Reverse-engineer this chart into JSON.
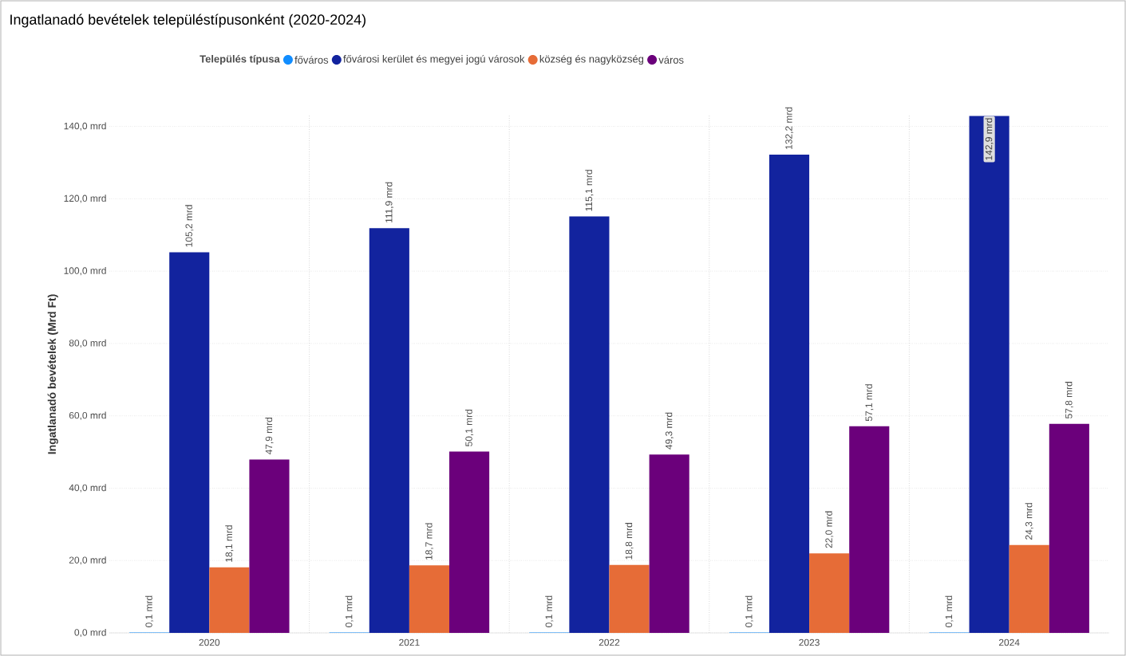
{
  "chart_data": {
    "type": "bar",
    "title": "Ingatlanadó bevételek településtípusonként (2020-2024)",
    "ylabel": "Ingatlanadó bevételek (Mrd Ft)",
    "legend_title": "Település típusa",
    "categories": [
      "2020",
      "2021",
      "2022",
      "2023",
      "2024"
    ],
    "series": [
      {
        "name": "főváros",
        "color": "#118dff",
        "values": [
          0.1,
          0.1,
          0.1,
          0.1,
          0.1
        ],
        "value_labels": [
          "0,1 mrd",
          "0,1 mrd",
          "0,1 mrd",
          "0,1 mrd",
          "0,1 mrd"
        ]
      },
      {
        "name": "fővárosi kerület és megyei jogú városok",
        "color": "#12239e",
        "values": [
          105.2,
          111.9,
          115.1,
          132.2,
          142.9
        ],
        "value_labels": [
          "105,2 mrd",
          "111,9 mrd",
          "115,1 mrd",
          "132,2 mrd",
          "142,9 mrd"
        ]
      },
      {
        "name": "község és nagyközség",
        "color": "#e66c37",
        "values": [
          18.1,
          18.7,
          18.8,
          22.0,
          24.3
        ],
        "value_labels": [
          "18,1 mrd",
          "18,7 mrd",
          "18,8 mrd",
          "22,0 mrd",
          "24,3 mrd"
        ]
      },
      {
        "name": "város",
        "color": "#6b007b",
        "values": [
          47.9,
          50.1,
          49.3,
          57.1,
          57.8
        ],
        "value_labels": [
          "47,9 mrd",
          "50,1 mrd",
          "49,3 mrd",
          "57,1 mrd",
          "57,8 mrd"
        ]
      }
    ],
    "ylim": [
      0,
      143
    ],
    "yticks": [
      {
        "value": 0,
        "label": "0,0 mrd"
      },
      {
        "value": 20,
        "label": "20,0 mrd"
      },
      {
        "value": 40,
        "label": "40,0 mrd"
      },
      {
        "value": 60,
        "label": "60,0 mrd"
      },
      {
        "value": 80,
        "label": "80,0 mrd"
      },
      {
        "value": 100,
        "label": "100,0 mrd"
      },
      {
        "value": 120,
        "label": "120,0 mrd"
      },
      {
        "value": 140,
        "label": "140,0 mrd"
      }
    ],
    "grid": true,
    "legend": "top"
  }
}
